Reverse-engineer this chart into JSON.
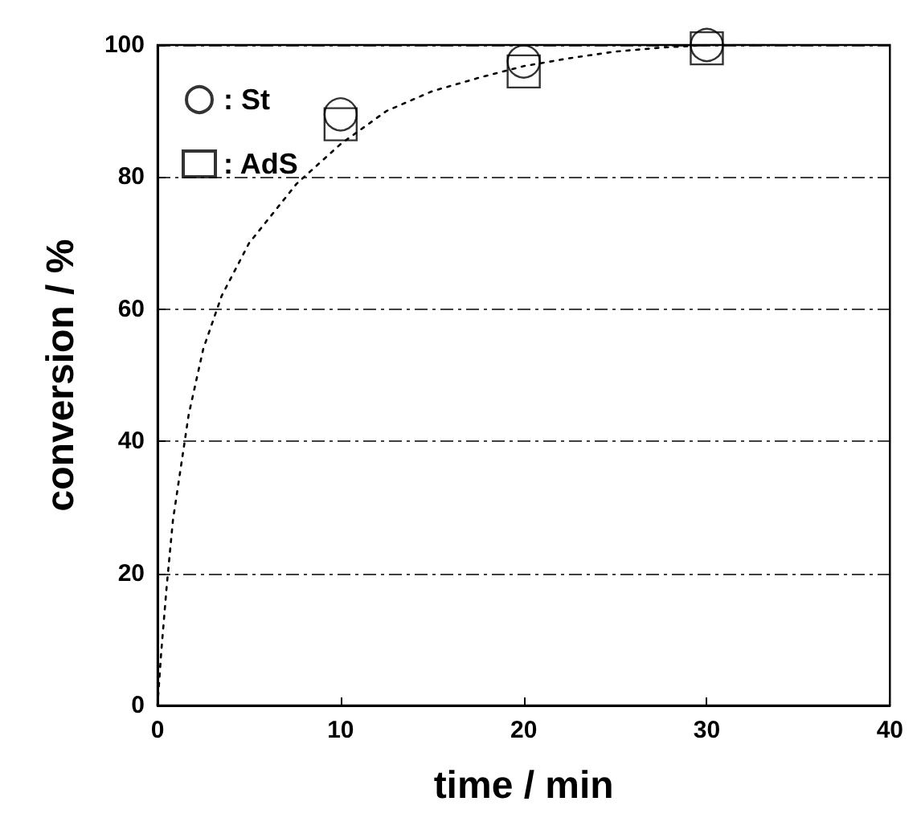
{
  "chart_data": {
    "type": "scatter",
    "xlabel": "time / min",
    "ylabel": "conversion / %",
    "xlim": [
      0,
      40
    ],
    "xticks": [
      0,
      10,
      20,
      30,
      40
    ],
    "ylim": [
      0,
      100
    ],
    "yticks": [
      0,
      20,
      40,
      60,
      80,
      100
    ],
    "grid": "y",
    "legend": "top left",
    "series": [
      {
        "name": ": St",
        "color": "#000000",
        "marker": "circle",
        "x": [
          10,
          20,
          30
        ],
        "values": [
          89.5,
          97.5,
          100
        ]
      },
      {
        "name": ": AdS",
        "color": "#000000",
        "marker": "square",
        "x": [
          10,
          20,
          30
        ],
        "values": [
          88,
          96,
          99.5
        ]
      },
      {
        "type": "line",
        "color": "#000000",
        "marker": "none",
        "line_style": "dotted",
        "x": [
          0,
          0.2,
          0.5,
          0.84,
          1.7,
          2.5,
          3.5,
          5,
          7.6,
          10,
          12.5,
          15,
          17.5,
          20,
          22.5,
          25,
          27.5,
          30,
          34
        ],
        "values": [
          0,
          8,
          18,
          28,
          44,
          54,
          62,
          70,
          79,
          85,
          90,
          93,
          95,
          96.8,
          98,
          99,
          99.6,
          100,
          100
        ]
      }
    ]
  }
}
